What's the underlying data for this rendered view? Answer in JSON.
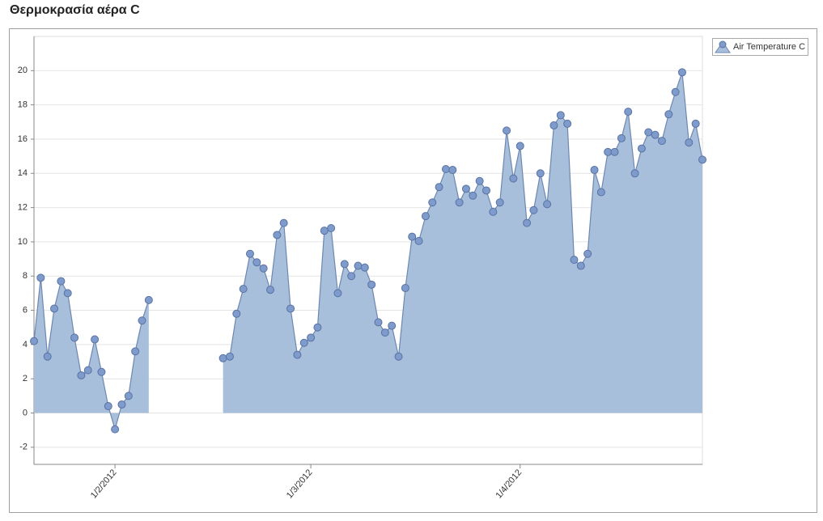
{
  "chart_data": {
    "type": "area",
    "title": "Θερμοκρασία αέρα C",
    "x": [
      "2012-01-20",
      "2012-01-21",
      "2012-01-22",
      "2012-01-23",
      "2012-01-24",
      "2012-01-25",
      "2012-01-26",
      "2012-01-27",
      "2012-01-28",
      "2012-01-29",
      "2012-01-30",
      "2012-01-31",
      "2012-02-01",
      "2012-02-02",
      "2012-02-03",
      "2012-02-04",
      "2012-02-05",
      "2012-02-06",
      "2012-02-07",
      "2012-02-08",
      "2012-02-09",
      "2012-02-10",
      "2012-02-11",
      "2012-02-12",
      "2012-02-13",
      "2012-02-14",
      "2012-02-15",
      "2012-02-16",
      "2012-02-17",
      "2012-02-18",
      "2012-02-19",
      "2012-02-20",
      "2012-02-21",
      "2012-02-22",
      "2012-02-23",
      "2012-02-24",
      "2012-02-25",
      "2012-02-26",
      "2012-02-27",
      "2012-02-28",
      "2012-02-29",
      "2012-03-01",
      "2012-03-02",
      "2012-03-03",
      "2012-03-04",
      "2012-03-05",
      "2012-03-06",
      "2012-03-07",
      "2012-03-08",
      "2012-03-09",
      "2012-03-10",
      "2012-03-11",
      "2012-03-12",
      "2012-03-13",
      "2012-03-14",
      "2012-03-15",
      "2012-03-16",
      "2012-03-17",
      "2012-03-18",
      "2012-03-19",
      "2012-03-20",
      "2012-03-21",
      "2012-03-22",
      "2012-03-23",
      "2012-03-24",
      "2012-03-25",
      "2012-03-26",
      "2012-03-27",
      "2012-03-28",
      "2012-03-29",
      "2012-03-30",
      "2012-03-31",
      "2012-04-01",
      "2012-04-02",
      "2012-04-03",
      "2012-04-04",
      "2012-04-05",
      "2012-04-06",
      "2012-04-07",
      "2012-04-08",
      "2012-04-09",
      "2012-04-10",
      "2012-04-11",
      "2012-04-12",
      "2012-04-13",
      "2012-04-14",
      "2012-04-15",
      "2012-04-16",
      "2012-04-17",
      "2012-04-18",
      "2012-04-19",
      "2012-04-20",
      "2012-04-21",
      "2012-04-22",
      "2012-04-23",
      "2012-04-24",
      "2012-04-25",
      "2012-04-26",
      "2012-04-27",
      "2012-04-28"
    ],
    "series": [
      {
        "name": "Air Temperature C",
        "color": "#a8bfdc",
        "values": [
          4.2,
          7.9,
          3.3,
          6.1,
          7.7,
          7.0,
          4.4,
          2.2,
          2.5,
          4.3,
          2.4,
          0.4,
          -0.95,
          0.5,
          1.0,
          3.6,
          5.4,
          6.6,
          null,
          null,
          null,
          null,
          null,
          null,
          null,
          null,
          null,
          null,
          3.2,
          3.3,
          5.8,
          7.25,
          9.3,
          8.8,
          8.45,
          7.2,
          10.4,
          11.1,
          6.1,
          3.4,
          4.1,
          4.4,
          5.0,
          10.65,
          10.8,
          7.0,
          8.7,
          8.0,
          8.6,
          8.5,
          7.5,
          5.3,
          4.7,
          5.1,
          3.3,
          7.3,
          10.3,
          10.05,
          11.5,
          12.3,
          13.2,
          14.25,
          14.2,
          12.3,
          13.1,
          12.7,
          13.55,
          13.0,
          11.75,
          12.3,
          16.5,
          13.7,
          15.6,
          11.1,
          11.85,
          14.0,
          12.2,
          16.8,
          17.4,
          16.9,
          8.95,
          8.6,
          9.3,
          14.2,
          12.9,
          15.25,
          15.25,
          16.05,
          17.6,
          14.0,
          15.45,
          16.4,
          16.25,
          15.9,
          17.45,
          18.75,
          19.9,
          15.8,
          16.9,
          14.8
        ]
      }
    ],
    "xlim": [
      "2012-01-20",
      "2012-04-28"
    ],
    "xticks": [
      {
        "value": "2012-02-01",
        "label": "1/2/2012"
      },
      {
        "value": "2012-03-01",
        "label": "1/3/2012"
      },
      {
        "value": "2012-04-01",
        "label": "1/4/2012"
      }
    ],
    "ylim": [
      -3,
      22
    ],
    "yticks": [
      -2,
      0,
      2,
      4,
      6,
      8,
      10,
      12,
      14,
      16,
      18,
      20
    ],
    "grid": true,
    "legend": "top-right"
  }
}
